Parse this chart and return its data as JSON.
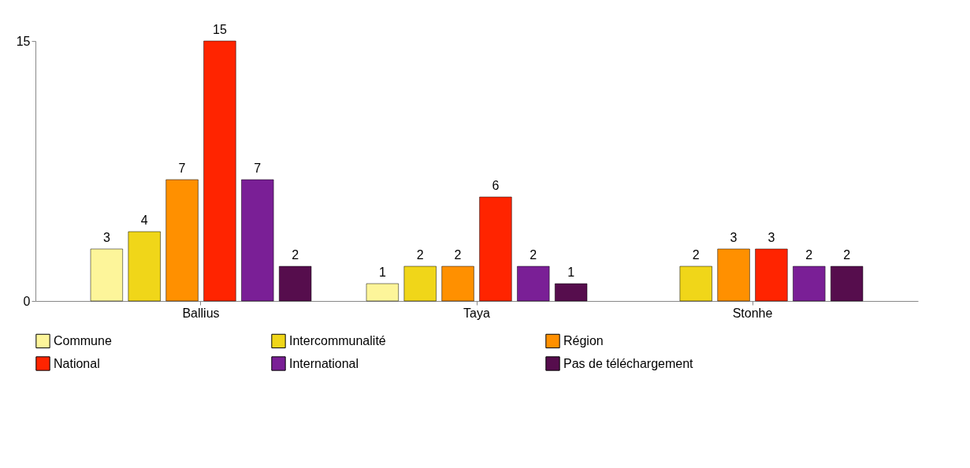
{
  "chart_data": {
    "type": "bar",
    "categories": [
      "Ballius",
      "Taya",
      "Stonhe"
    ],
    "series": [
      {
        "name": "Commune",
        "color": "#fdf59a",
        "values": [
          3,
          1,
          null
        ]
      },
      {
        "name": "Intercommunalité",
        "color": "#f0d619",
        "values": [
          4,
          2,
          2
        ]
      },
      {
        "name": "Région",
        "color": "#ff9000",
        "values": [
          7,
          2,
          3
        ]
      },
      {
        "name": "National",
        "color": "#ff2400",
        "values": [
          15,
          6,
          3
        ]
      },
      {
        "name": "International",
        "color": "#7a1f96",
        "values": [
          7,
          2,
          2
        ]
      },
      {
        "name": "Pas de téléchargement",
        "color": "#560d4d",
        "values": [
          2,
          1,
          2
        ]
      }
    ],
    "ylim": [
      0,
      15
    ],
    "yticks": [
      0,
      15
    ],
    "data_labels": true,
    "legend": "bottom"
  }
}
